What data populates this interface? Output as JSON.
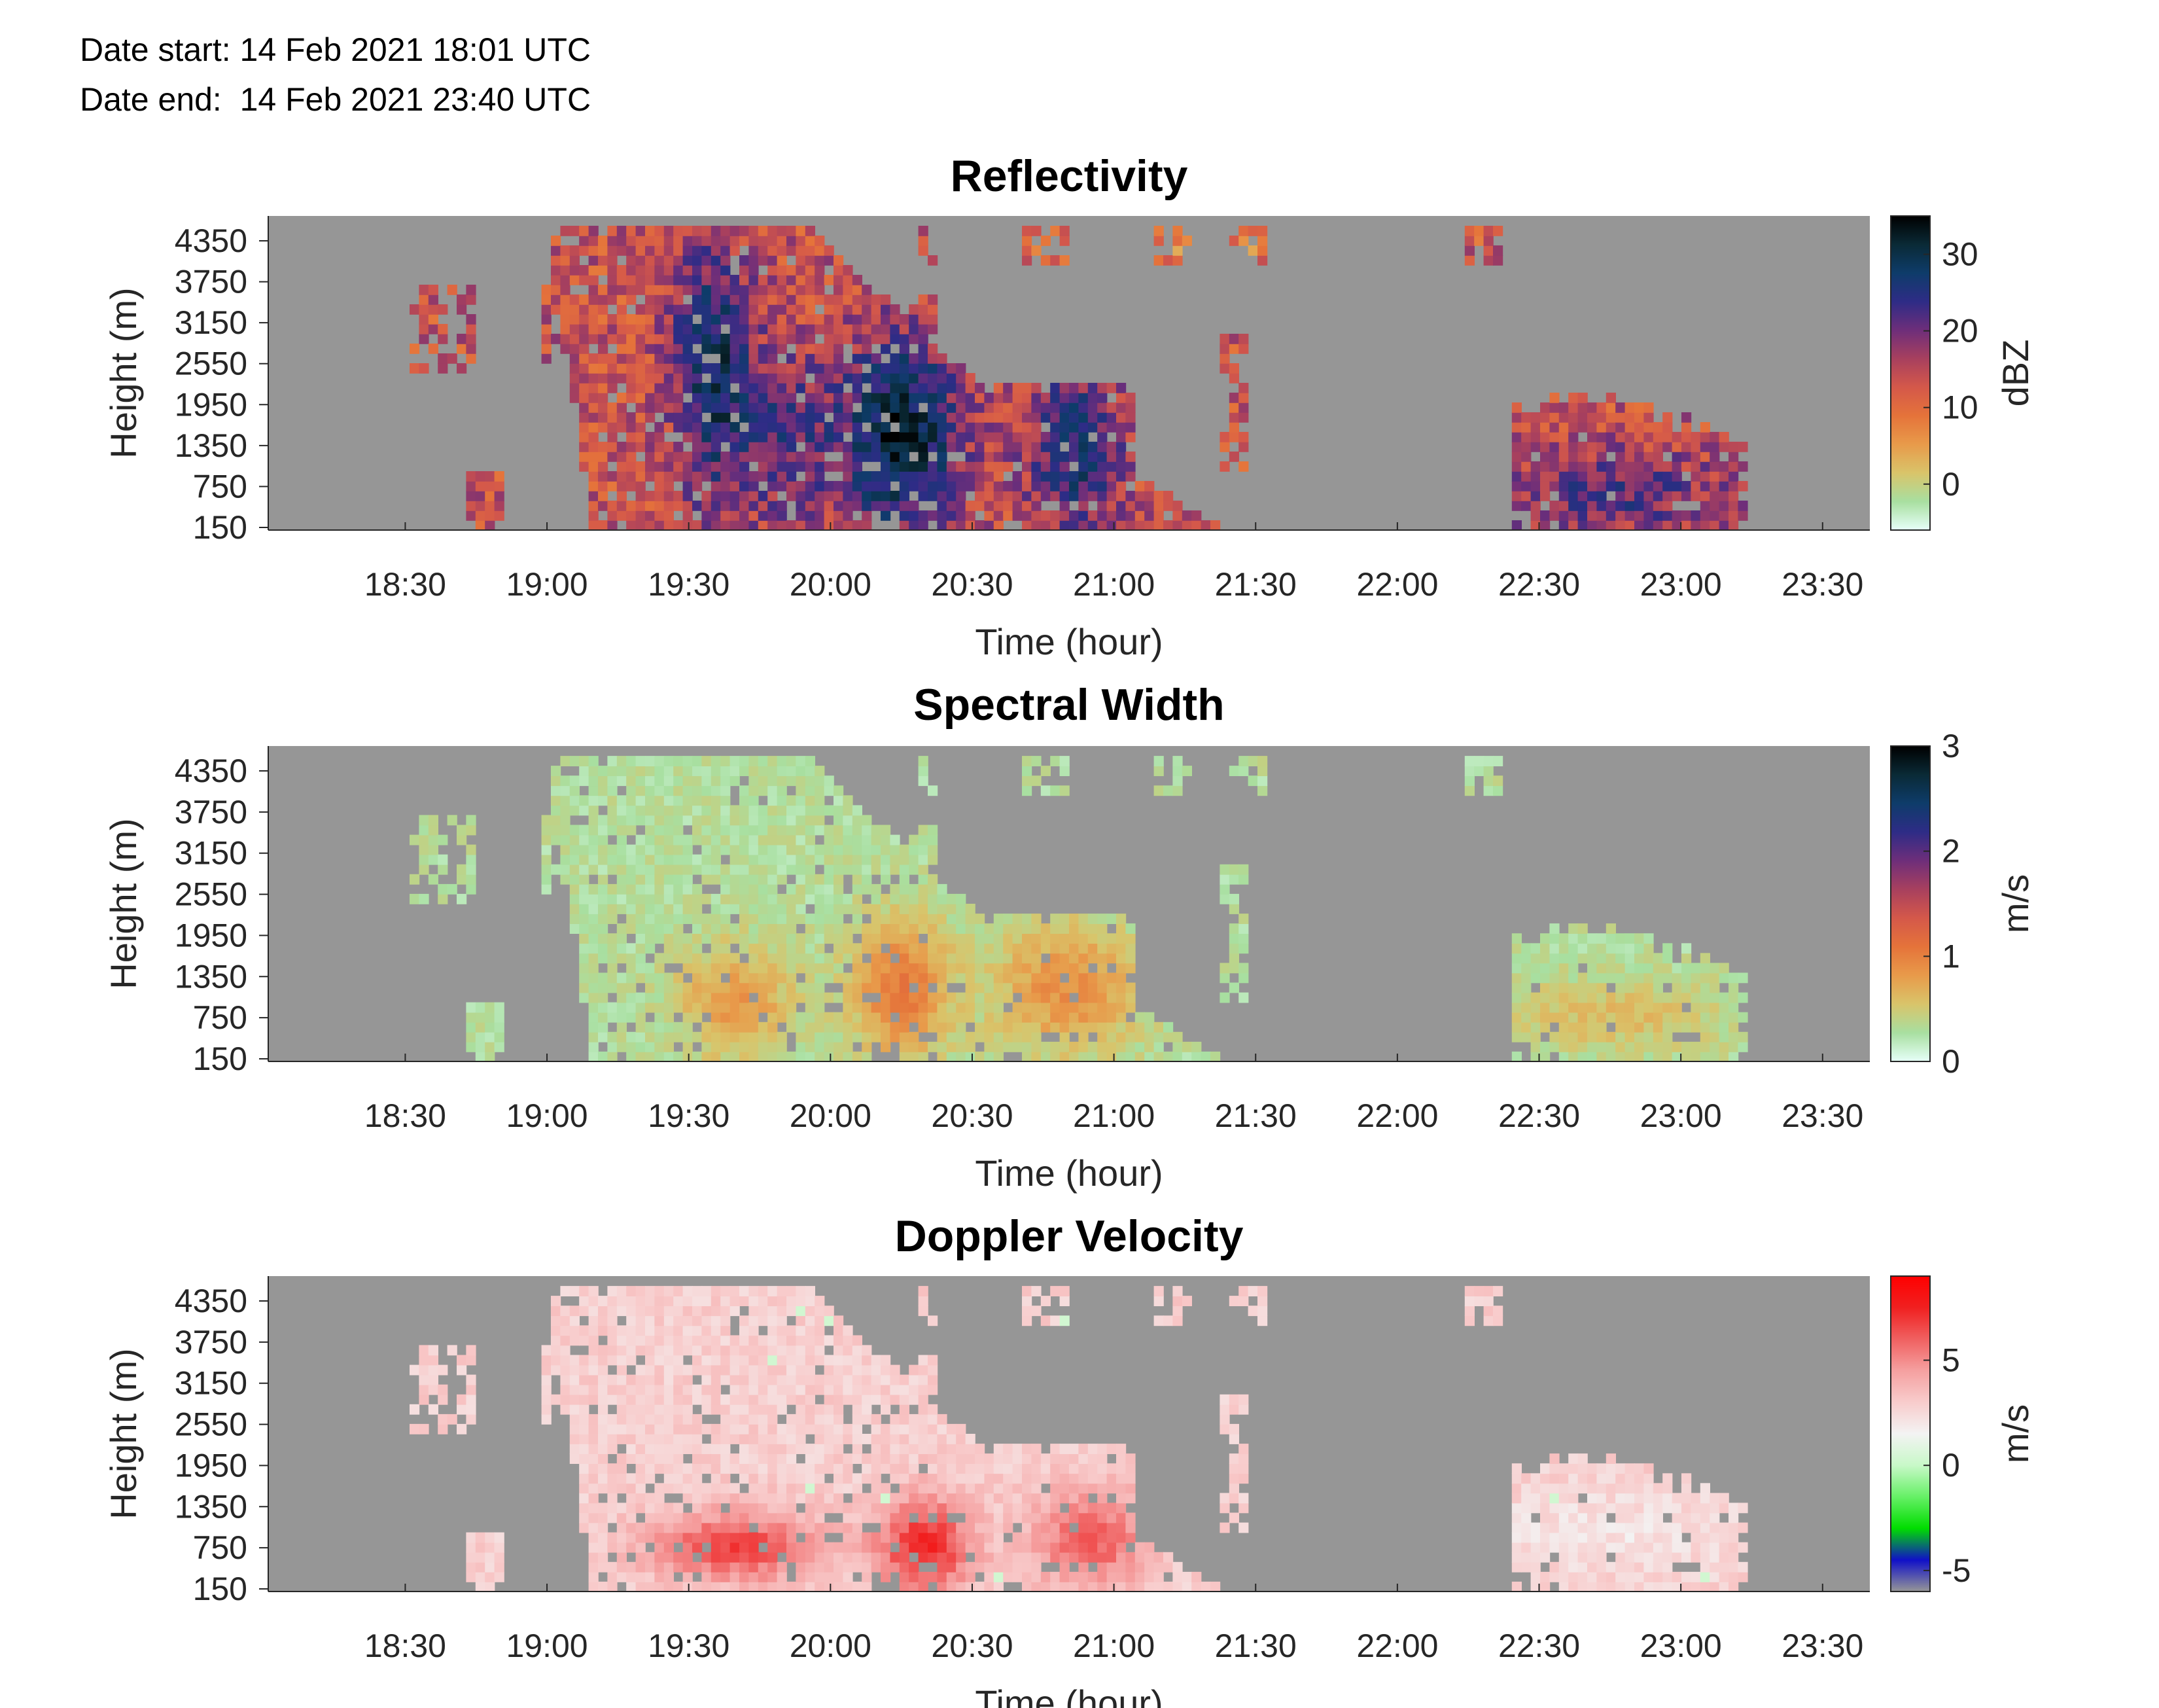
{
  "header": {
    "date_start": "Date start: 14 Feb 2021 18:01 UTC",
    "date_end": "Date end:  14 Feb 2021 23:40 UTC"
  },
  "chart_data": [
    {
      "type": "heatmap",
      "title": "Reflectivity",
      "xlabel": "Time (hour)",
      "ylabel": "Height (m)",
      "colorbar_label": "dBZ",
      "x_ticks": [
        "18:30",
        "19:00",
        "19:30",
        "20:00",
        "20:30",
        "21:00",
        "21:30",
        "22:00",
        "22:30",
        "23:00",
        "23:30"
      ],
      "y_ticks": [
        "150",
        "750",
        "1350",
        "1950",
        "2550",
        "3150",
        "3750",
        "4350"
      ],
      "colorbar_ticks": [
        "0",
        "10",
        "20",
        "30"
      ],
      "colorbar_range": [
        -6,
        35
      ],
      "colormap": [
        "#e6fff8",
        "#a8dfa0",
        "#d9c46a",
        "#e89a4a",
        "#e5733a",
        "#d4584a",
        "#a8405e",
        "#6e2e7a",
        "#2e2c86",
        "#0e3c6a",
        "#0a2a36",
        "#000000"
      ],
      "no_data_color": "#969696"
    },
    {
      "type": "heatmap",
      "title": "Spectral Width",
      "xlabel": "Time (hour)",
      "ylabel": "Height (m)",
      "colorbar_label": "m/s",
      "x_ticks": [
        "18:30",
        "19:00",
        "19:30",
        "20:00",
        "20:30",
        "21:00",
        "21:30",
        "22:00",
        "22:30",
        "23:00",
        "23:30"
      ],
      "y_ticks": [
        "150",
        "750",
        "1350",
        "1950",
        "2550",
        "3150",
        "3750",
        "4350"
      ],
      "colorbar_ticks": [
        "0",
        "1",
        "2",
        "3"
      ],
      "colorbar_range": [
        0,
        3
      ],
      "colormap": [
        "#e6fff8",
        "#a8dfa0",
        "#d9c46a",
        "#e89a4a",
        "#e5733a",
        "#d4584a",
        "#a8405e",
        "#6e2e7a",
        "#2e2c86",
        "#0e3c6a",
        "#0a2a36",
        "#000000"
      ],
      "no_data_color": "#969696"
    },
    {
      "type": "heatmap",
      "title": "Doppler Velocity",
      "xlabel": "Time (hour)",
      "ylabel": "Height (m)",
      "colorbar_label": "m/s",
      "x_ticks": [
        "18:30",
        "19:00",
        "19:30",
        "20:00",
        "20:30",
        "21:00",
        "21:30",
        "22:00",
        "22:30",
        "23:00",
        "23:30"
      ],
      "y_ticks": [
        "150",
        "750",
        "1350",
        "1950",
        "2550",
        "3150",
        "3750",
        "4350"
      ],
      "colorbar_ticks": [
        "-5",
        "0",
        "5"
      ],
      "colorbar_range": [
        -6,
        9
      ],
      "colormap": [
        "#969696",
        "#1010c8",
        "#00dd00",
        "#66f066",
        "#c8f8c8",
        "#f3f3f3",
        "#f8cccc",
        "#f5a0a0",
        "#f06060",
        "#f02020",
        "#ff0000"
      ],
      "no_data_color": "#969696"
    }
  ]
}
